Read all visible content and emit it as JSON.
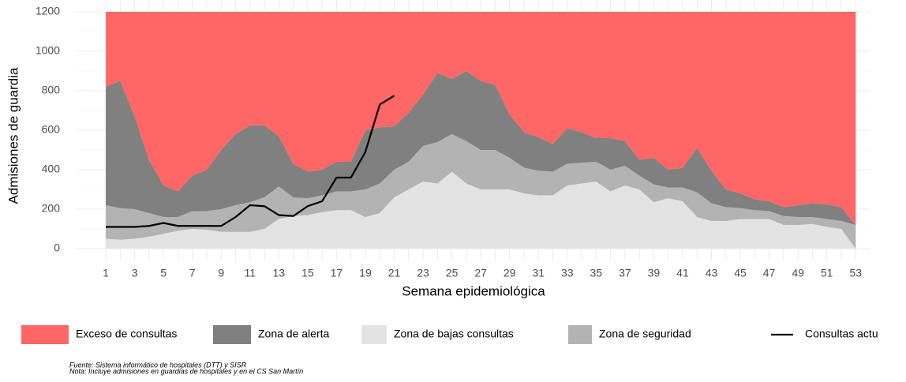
{
  "chart_data": {
    "type": "stacked-area-line",
    "x_label": "Semana epidemiológica",
    "y_label": "Admisiones de guardia",
    "x": [
      1,
      2,
      3,
      4,
      5,
      6,
      7,
      8,
      9,
      10,
      11,
      12,
      13,
      14,
      15,
      16,
      17,
      18,
      19,
      20,
      21,
      22,
      23,
      24,
      25,
      26,
      27,
      28,
      29,
      30,
      31,
      32,
      33,
      34,
      35,
      36,
      37,
      38,
      39,
      40,
      41,
      42,
      43,
      44,
      45,
      46,
      47,
      48,
      49,
      50,
      51,
      52,
      53
    ],
    "xlim": [
      -1,
      54
    ],
    "xticks": [
      1,
      3,
      5,
      7,
      9,
      11,
      13,
      15,
      17,
      19,
      21,
      23,
      25,
      27,
      29,
      31,
      33,
      35,
      37,
      39,
      41,
      43,
      45,
      47,
      49,
      51,
      53
    ],
    "ylim": [
      -60,
      1260
    ],
    "yticks": [
      0,
      200,
      400,
      600,
      800,
      1000,
      1200
    ],
    "grid": true,
    "series": [
      {
        "name": "Exceso de consultas",
        "color": "#ff6666",
        "kind": "area",
        "values": [
          380,
          350,
          530,
          750,
          880,
          910,
          830,
          800,
          700,
          620,
          575,
          575,
          630,
          770,
          810,
          800,
          760,
          760,
          600,
          585,
          580,
          510,
          420,
          310,
          340,
          300,
          350,
          370,
          520,
          610,
          635,
          670,
          590,
          610,
          640,
          640,
          655,
          750,
          740,
          800,
          790,
          690,
          805,
          900,
          920,
          950,
          960,
          990,
          980,
          970,
          975,
          990,
          1080
        ]
      },
      {
        "name": "Zona de alerta",
        "color": "#808080",
        "kind": "area",
        "values": [
          600,
          645,
          470,
          270,
          160,
          130,
          180,
          210,
          300,
          360,
          390,
          365,
          255,
          170,
          135,
          130,
          150,
          150,
          300,
          285,
          220,
          250,
          260,
          350,
          280,
          355,
          350,
          330,
          220,
          180,
          170,
          140,
          180,
          155,
          120,
          160,
          125,
          80,
          135,
          90,
          100,
          225,
          165,
          90,
          75,
          55,
          50,
          45,
          60,
          70,
          75,
          70,
          0
        ]
      },
      {
        "name": "Zona de bajas consultas",
        "color": "#e3e3e3",
        "kind": "area",
        "values": [
          50,
          45,
          50,
          60,
          75,
          90,
          100,
          95,
          85,
          85,
          85,
          100,
          150,
          165,
          170,
          185,
          195,
          195,
          160,
          180,
          260,
          300,
          340,
          330,
          390,
          330,
          300,
          300,
          300,
          280,
          270,
          270,
          320,
          330,
          340,
          290,
          320,
          300,
          235,
          255,
          240,
          160,
          140,
          140,
          150,
          150,
          150,
          120,
          120,
          125,
          110,
          100,
          0
        ]
      },
      {
        "name": "Zona de seguridad",
        "color": "#b3b3b3",
        "kind": "area",
        "values": [
          170,
          160,
          150,
          120,
          85,
          70,
          90,
          95,
          115,
          135,
          150,
          160,
          165,
          95,
          85,
          85,
          95,
          95,
          140,
          150,
          140,
          140,
          180,
          210,
          190,
          215,
          200,
          200,
          160,
          130,
          125,
          120,
          110,
          105,
          100,
          110,
          100,
          70,
          90,
          55,
          70,
          125,
          90,
          70,
          55,
          45,
          40,
          45,
          40,
          35,
          40,
          40,
          120
        ]
      },
      {
        "name": "Consultas actu",
        "color": "#000000",
        "kind": "line",
        "values": [
          110,
          110,
          110,
          115,
          130,
          115,
          115,
          115,
          115,
          160,
          220,
          215,
          170,
          165,
          215,
          240,
          360,
          360,
          490,
          730,
          775,
          null,
          null,
          null,
          null,
          null,
          null,
          null,
          null,
          null,
          null,
          null,
          null,
          null,
          null,
          null,
          null,
          null,
          null,
          null,
          null,
          null,
          null,
          null,
          null,
          null,
          null,
          null,
          null,
          null,
          null,
          null,
          null
        ]
      }
    ],
    "notes": [
      "Fuente: Sistema informático de hospitales (DTT) y SISR",
      "Nota: Incluye admisiones en guardias de hospitales y en el CS San Martín"
    ]
  }
}
